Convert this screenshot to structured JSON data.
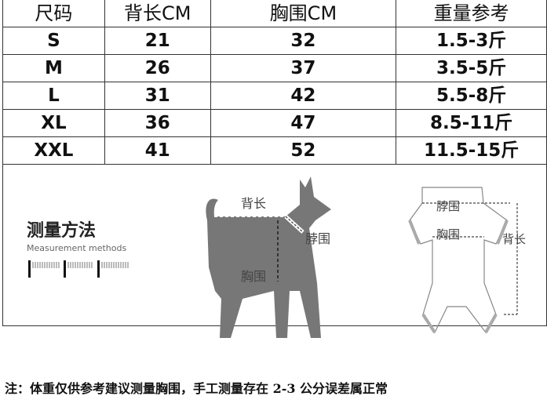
{
  "table": {
    "headers": [
      "尺码",
      "背长CM",
      "胸围CM",
      "重量参考"
    ],
    "rows": [
      [
        "S",
        "21",
        "32",
        "1.5-3斤"
      ],
      [
        "M",
        "26",
        "37",
        "3.5-5斤"
      ],
      [
        "L",
        "31",
        "42",
        "5.5-8斤"
      ],
      [
        "XL",
        "36",
        "47",
        "8.5-11斤"
      ],
      [
        "XXL",
        "41",
        "52",
        "11.5-15斤"
      ]
    ]
  },
  "measure": {
    "title": "测量方法",
    "subtitle": "Measurement methods",
    "dog_labels": {
      "back": "背长",
      "neck": "脖围",
      "chest": "胸围"
    },
    "garment_labels": {
      "neck": "脖围",
      "chest": "胸围",
      "back": "背长"
    }
  },
  "note": "注：体重仅供参考建议测量胸围，手工测量存在 2-3 公分误差属正常"
}
